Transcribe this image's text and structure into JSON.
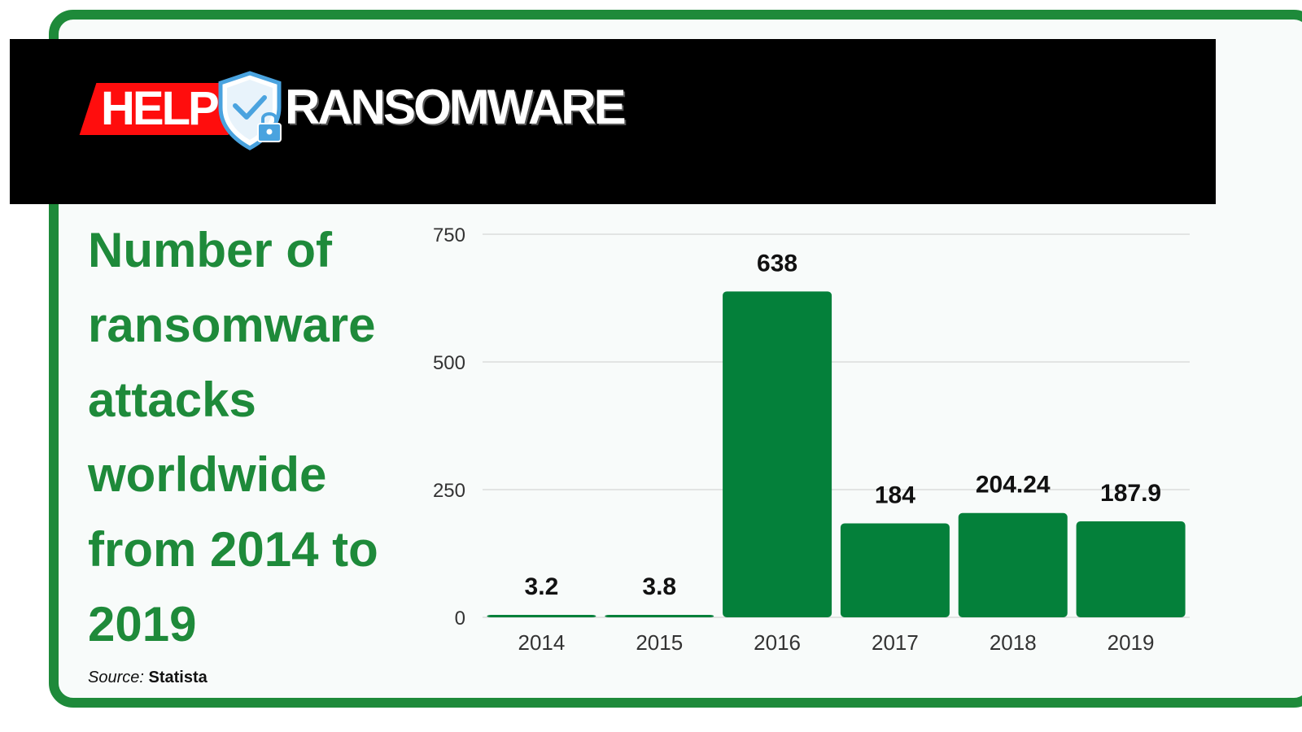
{
  "brand": {
    "logo_text_left": "HELP",
    "logo_text_right": "RANSOMWARE",
    "colors": {
      "accent_green": "#1e8a3a",
      "bar_green": "#04803a",
      "logo_red": "#ff0d0d",
      "shield_blue": "#4aa3df"
    }
  },
  "title": "Number of ransomware attacks worldwide from 2014 to 2019",
  "source": {
    "label": "Source:",
    "value": "Statista"
  },
  "chart_data": {
    "type": "bar",
    "categories": [
      "2014",
      "2015",
      "2016",
      "2017",
      "2018",
      "2019"
    ],
    "values": [
      3.2,
      3.8,
      638,
      184,
      204.24,
      187.9
    ],
    "data_labels": [
      "3.2",
      "3.8",
      "638",
      "184",
      "204.24",
      "187.9"
    ],
    "y_ticks": [
      0,
      250,
      500,
      750
    ],
    "ylim": [
      0,
      750
    ],
    "grid": true,
    "legend": "none"
  }
}
